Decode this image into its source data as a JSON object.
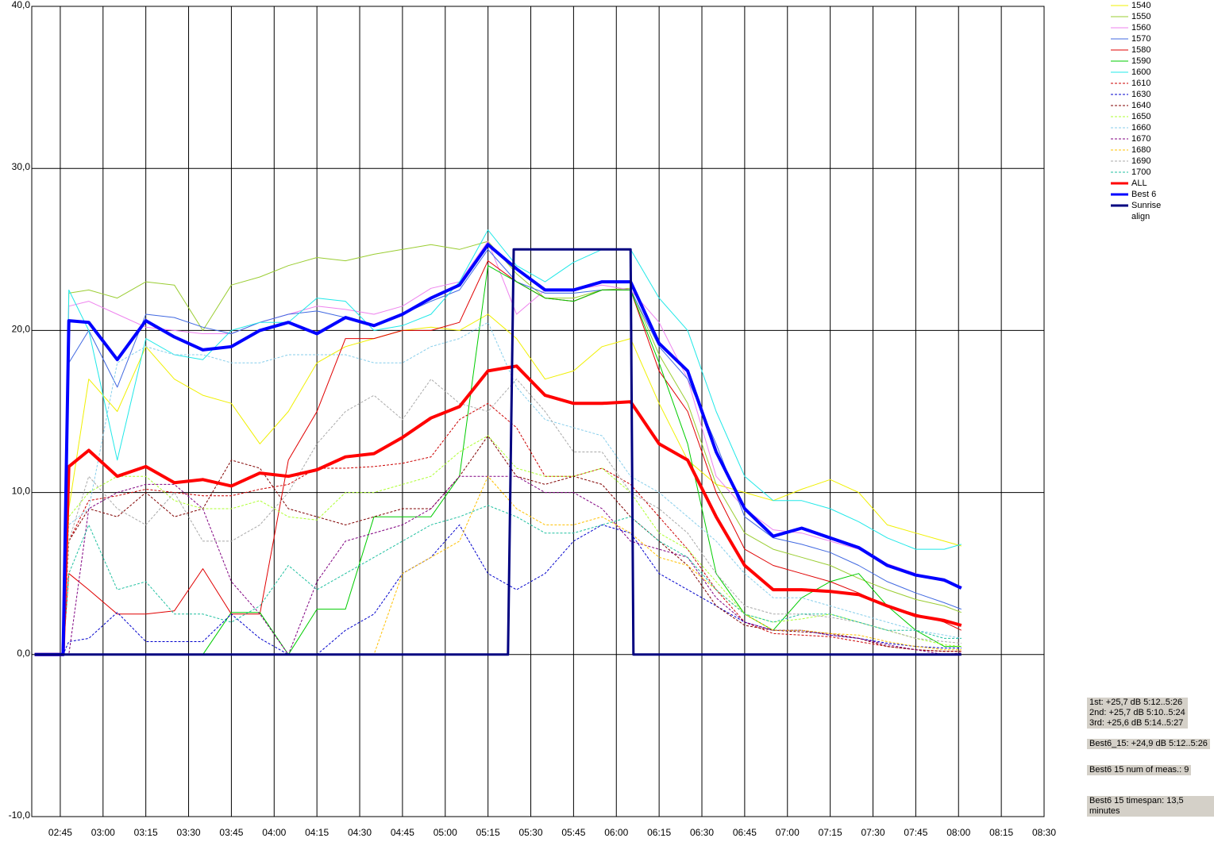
{
  "chart_data": {
    "type": "line",
    "x": [
      "02:36",
      "02:46",
      "02:48",
      "02:55",
      "03:05",
      "03:15",
      "03:25",
      "03:35",
      "03:45",
      "03:55",
      "04:05",
      "04:15",
      "04:25",
      "04:35",
      "04:45",
      "04:55",
      "05:05",
      "05:15",
      "05:25",
      "05:35",
      "05:45",
      "05:55",
      "06:05",
      "06:15",
      "06:25",
      "06:35",
      "06:45",
      "06:55",
      "07:05",
      "07:15",
      "07:25",
      "07:35",
      "07:45",
      "07:55",
      "08:01"
    ],
    "xlim": [
      "02:35",
      "08:30"
    ],
    "xticks": [
      "02:45",
      "03:00",
      "03:15",
      "03:30",
      "03:45",
      "04:00",
      "04:15",
      "04:30",
      "04:45",
      "05:00",
      "05:15",
      "05:30",
      "05:45",
      "06:00",
      "06:15",
      "06:30",
      "06:45",
      "07:00",
      "07:15",
      "07:30",
      "07:45",
      "08:00",
      "08:15",
      "08:30"
    ],
    "ylim": [
      -10,
      40
    ],
    "yticks": [
      {
        "value": -10,
        "label": "-10,0"
      },
      {
        "value": 0,
        "label": "0,0"
      },
      {
        "value": 10,
        "label": "10,0"
      },
      {
        "value": 20,
        "label": "20,0"
      },
      {
        "value": 30,
        "label": "30,0"
      },
      {
        "value": 40,
        "label": "40,0"
      }
    ],
    "grid": true,
    "legend": "top-right",
    "series": [
      {
        "name": "1540",
        "color": "#f0f000",
        "dashed": false,
        "line_width": 1,
        "values": [
          0,
          0,
          9,
          17,
          15,
          19,
          17,
          16,
          15.5,
          13,
          15,
          18,
          19,
          19.5,
          20,
          20.2,
          20,
          21,
          19.5,
          17,
          17.5,
          19,
          19.5,
          15.5,
          12,
          10.5,
          10,
          9.5,
          10.2,
          10.8,
          10,
          8,
          7.5,
          7,
          6.7
        ]
      },
      {
        "name": "1550",
        "color": "#9acd32",
        "dashed": false,
        "line_width": 1,
        "values": [
          0,
          0,
          22.3,
          22.5,
          22,
          23,
          22.8,
          20,
          22.8,
          23.3,
          24,
          24.5,
          24.3,
          24.7,
          25,
          25.3,
          25,
          25.5,
          23.5,
          22,
          22,
          22.5,
          22.6,
          18.5,
          15.5,
          10.5,
          7.5,
          6.5,
          6,
          5.5,
          4.7,
          4,
          3.4,
          3,
          2.6
        ]
      },
      {
        "name": "1560",
        "color": "#ee82ee",
        "dashed": false,
        "line_width": 1,
        "values": [
          0,
          0,
          21.5,
          21.8,
          21,
          20.2,
          20,
          19.8,
          19.8,
          20.5,
          21,
          21.5,
          21.3,
          21,
          21.5,
          22.6,
          23,
          25.5,
          21,
          22.5,
          22.5,
          22.8,
          22.5,
          20.5,
          17,
          11,
          9,
          7.7,
          7.5,
          7,
          6.5,
          5.6,
          5,
          4.5,
          4.2
        ]
      },
      {
        "name": "1570",
        "color": "#4169e1",
        "dashed": false,
        "line_width": 1,
        "values": [
          0,
          0,
          18,
          20,
          16.5,
          21,
          20.8,
          20.2,
          19.8,
          20.5,
          21,
          21.2,
          20.8,
          20.3,
          21,
          21.8,
          22.5,
          25,
          23,
          22.3,
          22.3,
          22.5,
          22.5,
          19,
          17,
          13,
          8.5,
          7.2,
          6.8,
          6.3,
          5.5,
          4.5,
          3.8,
          3.2,
          2.8
        ]
      },
      {
        "name": "1580",
        "color": "#e00000",
        "dashed": false,
        "line_width": 1,
        "values": [
          0,
          0,
          5,
          4,
          2.5,
          2.5,
          2.7,
          5.3,
          2.5,
          2.5,
          12,
          15,
          19.5,
          19.5,
          20,
          20,
          20.5,
          24.3,
          23,
          22,
          21.8,
          22.5,
          22.5,
          17.5,
          15,
          10,
          6.5,
          5.5,
          5,
          4.5,
          3.8,
          3,
          2.5,
          2,
          1.5
        ]
      },
      {
        "name": "1590",
        "color": "#00cc00",
        "dashed": false,
        "line_width": 1,
        "values": [
          0,
          0,
          0,
          0,
          0,
          0,
          0,
          0,
          2.6,
          2.6,
          0,
          2.8,
          2.8,
          8.5,
          8.5,
          8.5,
          11,
          24,
          23,
          22,
          21.8,
          22.5,
          22.5,
          18,
          13,
          5,
          2.5,
          1.5,
          3.5,
          4.5,
          5,
          3,
          1.5,
          0.5,
          0.5
        ]
      },
      {
        "name": "1600",
        "color": "#20e8e8",
        "dashed": false,
        "line_width": 1,
        "values": [
          0,
          0,
          22.5,
          20,
          12,
          19.5,
          18.5,
          18.2,
          20,
          20.5,
          20.5,
          22,
          21.8,
          20,
          20.3,
          21,
          23,
          26.2,
          24,
          23,
          24.2,
          25,
          25,
          22,
          20,
          15,
          11,
          9.5,
          9.5,
          9,
          8.2,
          7.2,
          6.5,
          6.5,
          6.8
        ]
      },
      {
        "name": "1610",
        "color": "#cc0000",
        "dashed": true,
        "line_width": 1,
        "values": [
          0,
          0,
          7,
          9.5,
          9.8,
          10.2,
          10,
          9.8,
          9.8,
          10.2,
          10.5,
          11.5,
          11.5,
          11.6,
          11.8,
          12.2,
          14.5,
          15.5,
          14,
          11,
          11,
          11.5,
          10.5,
          8.5,
          6.5,
          4,
          2,
          1.3,
          1.2,
          1.1,
          0.8,
          0.5,
          0.3,
          0.2,
          0.2
        ]
      },
      {
        "name": "1630",
        "color": "#0000cc",
        "dashed": true,
        "line_width": 1,
        "values": [
          0,
          0,
          0.8,
          1,
          2.6,
          0.8,
          0.8,
          0.8,
          2.5,
          1,
          0,
          0,
          1.5,
          2.5,
          5,
          6,
          8,
          5,
          4,
          5,
          7,
          8,
          7.5,
          5,
          4,
          3,
          2,
          1.5,
          1.5,
          1.2,
          1,
          0.7,
          0.5,
          0.4,
          0.4
        ]
      },
      {
        "name": "1640",
        "color": "#800000",
        "dashed": true,
        "line_width": 1,
        "values": [
          0,
          0,
          7,
          9,
          8.5,
          10,
          8.5,
          9,
          12,
          11.5,
          9,
          8.5,
          8,
          8.5,
          9,
          9,
          11,
          13.5,
          11,
          10.5,
          11,
          10.5,
          8.5,
          7,
          5.5,
          3,
          1.8,
          1.5,
          1.4,
          1.3,
          1,
          0.5,
          0.3,
          0.2,
          0.2
        ]
      },
      {
        "name": "1650",
        "color": "#adff2f",
        "dashed": true,
        "line_width": 1,
        "values": [
          0,
          0,
          8.5,
          10,
          11,
          11,
          9.5,
          9,
          9,
          9.5,
          8.5,
          8.3,
          10,
          10,
          10.5,
          11,
          12.5,
          13.5,
          11.5,
          11,
          11,
          11.5,
          10,
          7.5,
          6.5,
          4.5,
          2.5,
          2,
          2.2,
          2.5,
          2,
          1.5,
          1,
          0.6,
          0.5
        ]
      },
      {
        "name": "1660",
        "color": "#87ceeb",
        "dashed": true,
        "line_width": 1,
        "values": [
          0,
          0,
          8,
          9,
          18,
          19,
          18.5,
          18.5,
          18,
          18,
          18.5,
          18.5,
          18.5,
          18,
          18,
          19,
          19.5,
          20.5,
          16.5,
          14.5,
          14,
          13.5,
          11,
          10,
          8.5,
          7,
          5,
          3.5,
          3.5,
          3,
          2.5,
          2,
          1.5,
          1.2,
          1
        ]
      },
      {
        "name": "1670",
        "color": "#800080",
        "dashed": true,
        "line_width": 1,
        "values": [
          0,
          0,
          0,
          9,
          10,
          10.5,
          10.5,
          9,
          4.5,
          2.5,
          0,
          4.5,
          7,
          7.5,
          8,
          9,
          11,
          11,
          11,
          10,
          10,
          9,
          7,
          6.5,
          6,
          3.5,
          2,
          1.5,
          1.5,
          1.2,
          1,
          0.6,
          0.3,
          0,
          0.1
        ]
      },
      {
        "name": "1680",
        "color": "#ffc000",
        "dashed": true,
        "line_width": 1,
        "values": [
          0,
          0,
          0,
          0,
          0,
          0,
          0,
          0,
          0,
          0,
          0,
          0,
          0,
          0,
          5,
          6,
          7,
          11,
          9,
          8,
          8,
          8.5,
          7.5,
          6,
          5.5,
          4,
          2.5,
          1.5,
          1.5,
          1.3,
          1.2,
          0.8,
          0.5,
          0.3,
          0.3
        ]
      },
      {
        "name": "1690",
        "color": "#a9a9a9",
        "dashed": true,
        "line_width": 1,
        "values": [
          0,
          0,
          7,
          11,
          9,
          8,
          10,
          7,
          7,
          8,
          10,
          13,
          15,
          16,
          14.5,
          17,
          15.5,
          15,
          17,
          15,
          12.5,
          12.5,
          10,
          9,
          7.5,
          5,
          3,
          2.5,
          2.5,
          2.3,
          2,
          1.5,
          1,
          0.8,
          0.7
        ]
      },
      {
        "name": "1700",
        "color": "#20c0a0",
        "dashed": true,
        "line_width": 1,
        "values": [
          0,
          0,
          5,
          8,
          4,
          4.5,
          2.5,
          2.5,
          2,
          3,
          5.5,
          4,
          5,
          6,
          7,
          8,
          8.5,
          9.2,
          8.5,
          7.5,
          7.5,
          8,
          8.5,
          7,
          6,
          4,
          2.5,
          2,
          2.5,
          2.5,
          2,
          1.5,
          1.5,
          1,
          1
        ]
      },
      {
        "name": "ALL",
        "color": "#ff0000",
        "dashed": false,
        "line_width": 4,
        "values": [
          0,
          0,
          11.6,
          12.6,
          11,
          11.6,
          10.6,
          10.8,
          10.4,
          11.2,
          11,
          11.4,
          12.2,
          12.4,
          13.4,
          14.6,
          15.3,
          17.5,
          17.8,
          16,
          15.5,
          15.5,
          15.6,
          13,
          12,
          8.5,
          5.5,
          4,
          4,
          3.9,
          3.7,
          3,
          2.4,
          2.1,
          1.8
        ]
      },
      {
        "name": "Best 6",
        "color": "#0000ff",
        "dashed": false,
        "line_width": 4,
        "values": [
          0,
          0,
          20.6,
          20.5,
          18.2,
          20.6,
          19.6,
          18.8,
          19,
          20,
          20.5,
          19.8,
          20.8,
          20.3,
          21,
          22,
          22.8,
          25.3,
          23.8,
          22.5,
          22.5,
          23,
          23,
          19.2,
          17.5,
          12.5,
          9,
          7.3,
          7.8,
          7.2,
          6.6,
          5.5,
          4.9,
          4.6,
          4.1
        ]
      },
      {
        "name": "Sunrise align",
        "color": "#000080",
        "dashed": false,
        "line_width": 3,
        "x": [
          "02:36",
          "05:22",
          "05:24",
          "06:05",
          "06:06",
          "08:01"
        ],
        "values": [
          0,
          0,
          25,
          25,
          0,
          0
        ]
      }
    ],
    "annotations": [
      [
        "1st: +25,7 dB 5:12..5:26",
        "2nd: +25,7 dB 5:10..5:24",
        "3rd: +25,6 dB 5:14..5:27"
      ],
      "Best6_15: +24,9 dB 5:12..5:26",
      "Best6 15 num of meas.: 9",
      "Best6 15 timespan: 13,5 minutes"
    ]
  }
}
